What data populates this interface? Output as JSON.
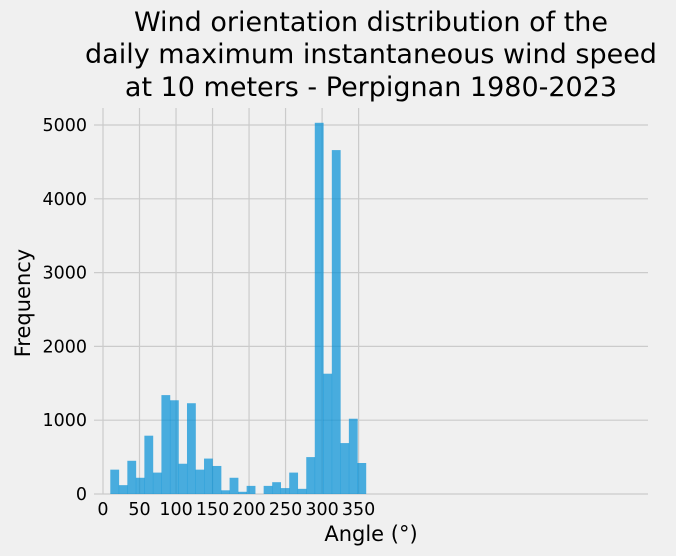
{
  "chart_data": {
    "type": "bar",
    "title": [
      "Wind orientation distribution of the",
      "daily maximum instantaneous wind speed",
      "at 10 meters - Perpignan 1980-2023"
    ],
    "xlabel": "Angle (°)",
    "ylabel": "Frequency",
    "xlim": [
      0,
      370
    ],
    "ylim": [
      0,
      5250
    ],
    "xticks": [
      0,
      50,
      100,
      150,
      200,
      250,
      300,
      350
    ],
    "yticks": [
      0,
      1000,
      2000,
      3000,
      4000,
      5000
    ],
    "grid": true,
    "bar_color": "#008fd5",
    "bin_width": 11.667,
    "bins": [
      {
        "x0": 10,
        "value": 330
      },
      {
        "x0": 21.667,
        "value": 120
      },
      {
        "x0": 33.333,
        "value": 450
      },
      {
        "x0": 45,
        "value": 220
      },
      {
        "x0": 56.667,
        "value": 790
      },
      {
        "x0": 68.333,
        "value": 290
      },
      {
        "x0": 80,
        "value": 1340
      },
      {
        "x0": 91.667,
        "value": 1270
      },
      {
        "x0": 103.333,
        "value": 410
      },
      {
        "x0": 115,
        "value": 1230
      },
      {
        "x0": 126.667,
        "value": 330
      },
      {
        "x0": 138.333,
        "value": 480
      },
      {
        "x0": 150,
        "value": 380
      },
      {
        "x0": 161.667,
        "value": 50
      },
      {
        "x0": 173.333,
        "value": 220
      },
      {
        "x0": 185,
        "value": 30
      },
      {
        "x0": 196.667,
        "value": 110
      },
      {
        "x0": 208.333,
        "value": 0
      },
      {
        "x0": 220,
        "value": 110
      },
      {
        "x0": 231.667,
        "value": 160
      },
      {
        "x0": 243.333,
        "value": 80
      },
      {
        "x0": 255,
        "value": 290
      },
      {
        "x0": 266.667,
        "value": 70
      },
      {
        "x0": 278.333,
        "value": 500
      },
      {
        "x0": 290,
        "value": 5030
      },
      {
        "x0": 301.667,
        "value": 1630
      },
      {
        "x0": 313.333,
        "value": 4660
      },
      {
        "x0": 325,
        "value": 690
      },
      {
        "x0": 336.667,
        "value": 1020
      },
      {
        "x0": 348.333,
        "value": 420
      }
    ]
  }
}
